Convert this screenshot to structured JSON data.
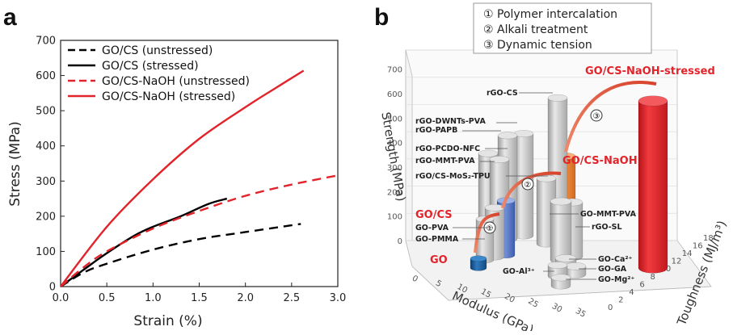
{
  "panel_a": {
    "letter": "a",
    "xlabel": "Strain (%)",
    "ylabel": "Stress (MPa)",
    "xticks": [
      "0.0",
      "0.5",
      "1.0",
      "1.5",
      "2.0",
      "2.5",
      "3.0"
    ],
    "yticks": [
      "0",
      "100",
      "200",
      "300",
      "400",
      "500",
      "600",
      "700"
    ]
  },
  "panel_b": {
    "letter": "b",
    "legend": [
      "① Polymer intercalation",
      "② Alkali treatment",
      "③ Dynamic tension"
    ],
    "axis_strength": "Strength (MPa)",
    "axis_modulus": "Modulus (GPa)",
    "axis_toughness": "Toughness (MJ/m³)",
    "strength_ticks": [
      "0",
      "100",
      "200",
      "300",
      "400",
      "500",
      "600",
      "700"
    ],
    "modulus_ticks": [
      "0",
      "5",
      "10",
      "15",
      "20",
      "25",
      "30",
      "35"
    ],
    "toughness_ticks": [
      "0",
      "2",
      "4",
      "6",
      "8",
      "10",
      "12",
      "14",
      "16",
      "18"
    ],
    "step_markers": [
      "①",
      "②",
      "③"
    ],
    "labels": {
      "rgo_cs": "rGO-CS",
      "rgo_dwnts_pva": "rGO-DWNTs-PVA",
      "rgo_papb": "rGO-PAPB",
      "rgo_pcdo_nfc": "rGO-PCDO-NFC",
      "rgo_mmt_pva": "rGO-MMT-PVA",
      "rgo_cs_mos2_tpu": "rGO/CS-MoS₂-TPU",
      "go_pva": "GO-PVA",
      "go_pmma": "GO-PMMA",
      "go_mmt_pva": "GO-MMT-PVA",
      "rgo_sl": "rGO-SL",
      "go_ca": "GO-Ca²⁺",
      "go_ga": "GO-GA",
      "go_mg": "GO-Mg²⁺",
      "go_al": "GO-Al³⁺",
      "go": "GO",
      "go_cs": "GO/CS",
      "go_cs_naoh": "GO/CS-NaOH",
      "go_cs_naoh_stressed": "GO/CS-NaOH-stressed"
    }
  },
  "chart_data": [
    {
      "type": "line",
      "xlabel": "Strain (%)",
      "ylabel": "Stress (MPa)",
      "xlim": [
        0,
        3.0
      ],
      "ylim": [
        0,
        700
      ],
      "legend_position": "top-left",
      "series": [
        {
          "name": "GO/CS (unstressed)",
          "color": "#000000",
          "dash": "dashed",
          "x": [
            0,
            0.25,
            0.5,
            1.0,
            1.5,
            2.0,
            2.6
          ],
          "y": [
            0,
            40,
            65,
            105,
            135,
            155,
            178
          ]
        },
        {
          "name": "GO/CS (stressed)",
          "color": "#000000",
          "dash": "solid",
          "x": [
            0,
            0.25,
            0.5,
            0.8,
            1.0,
            1.3,
            1.6,
            1.8
          ],
          "y": [
            0,
            48,
            95,
            145,
            170,
            200,
            235,
            250
          ]
        },
        {
          "name": "GO/CS-NaOH (unstressed)",
          "color": "#e2232a",
          "dash": "dashed",
          "x": [
            0,
            0.25,
            0.5,
            1.0,
            1.5,
            2.0,
            2.5,
            3.0
          ],
          "y": [
            0,
            55,
            100,
            165,
            215,
            258,
            290,
            316
          ]
        },
        {
          "name": "GO/CS-NaOH (stressed)",
          "color": "#e2232a",
          "dash": "solid",
          "x": [
            0,
            0.5,
            1.0,
            1.5,
            2.0,
            2.3,
            2.63
          ],
          "y": [
            0,
            170,
            305,
            420,
            510,
            560,
            614
          ]
        }
      ]
    },
    {
      "type": "bar",
      "zlabel": "Strength (MPa)",
      "xlabel": "Modulus (GPa)",
      "ylabel": "Toughness (MJ/m³)",
      "note": "3D bar chart; values estimated from perspective",
      "bars": [
        {
          "name": "GO",
          "strength": 35,
          "color": "#1f5f9c"
        },
        {
          "name": "GO/CS",
          "strength": 200,
          "color": "#4f72c4"
        },
        {
          "name": "GO/CS-NaOH",
          "strength": 310,
          "color": "#f07f2b"
        },
        {
          "name": "GO/CS-NaOH-stressed",
          "strength": 614,
          "color": "#e2232a"
        },
        {
          "name": "rGO-CS",
          "strength": 530,
          "color": "#c8c8c8"
        },
        {
          "name": "rGO-DWNTs-PVA",
          "strength": 375,
          "color": "#c8c8c8"
        },
        {
          "name": "rGO-PAPB",
          "strength": 380,
          "color": "#c8c8c8"
        },
        {
          "name": "rGO-PCDO-NFC",
          "strength": 320,
          "color": "#c8c8c8"
        },
        {
          "name": "rGO-MMT-PVA",
          "strength": 310,
          "color": "#c8c8c8"
        },
        {
          "name": "rGO/CS-MoS₂-TPU",
          "strength": 240,
          "color": "#c8c8c8"
        },
        {
          "name": "GO-PVA",
          "strength": 180,
          "color": "#c8c8c8"
        },
        {
          "name": "GO-PMMA",
          "strength": 150,
          "color": "#c8c8c8"
        },
        {
          "name": "GO-MMT-PVA",
          "strength": 215,
          "color": "#c8c8c8"
        },
        {
          "name": "rGO-SL",
          "strength": 200,
          "color": "#c8c8c8"
        },
        {
          "name": "GO-Ca²⁺",
          "strength": 30,
          "color": "#c8c8c8"
        },
        {
          "name": "GO-GA",
          "strength": 30,
          "color": "#c8c8c8"
        },
        {
          "name": "GO-Mg²⁺",
          "strength": 30,
          "color": "#c8c8c8"
        },
        {
          "name": "GO-Al³⁺",
          "strength": 40,
          "color": "#c8c8c8"
        }
      ]
    }
  ]
}
